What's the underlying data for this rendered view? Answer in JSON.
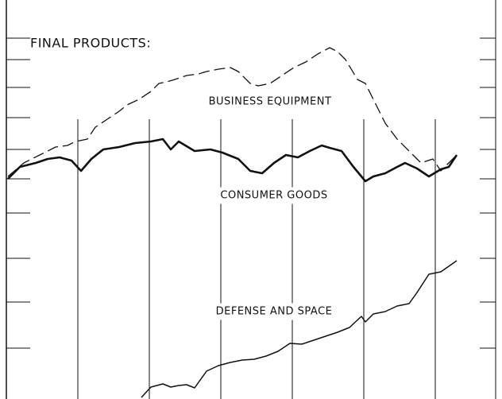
{
  "chart_data": {
    "type": "line",
    "title": "FINAL PRODUCTS:",
    "xlim": [
      0,
      632
    ],
    "ylim": [
      0,
      502
    ],
    "xticks": [
      98,
      188,
      278,
      368,
      458,
      548
    ],
    "yticks": [
      454,
      427,
      392,
      354,
      314,
      277,
      234,
      177,
      122,
      64
    ],
    "series": [
      {
        "name": "BUSINESS EQUIPMENT",
        "color": "#111111",
        "style": "dashed",
        "x": [
          10,
          30,
          50,
          70,
          85,
          95,
          110,
          120,
          135,
          150,
          160,
          175,
          190,
          200,
          210,
          220,
          235,
          250,
          260,
          275,
          290,
          300,
          315,
          325,
          340,
          355,
          370,
          385,
          400,
          415,
          425,
          435,
          450,
          460,
          470,
          485,
          500,
          515,
          530,
          545,
          555,
          565,
          575
        ],
        "values": [
          280,
          297,
          307,
          317,
          319,
          324,
          327,
          342,
          352,
          362,
          370,
          377,
          387,
          397,
          399,
          402,
          407,
          409,
          412,
          415,
          417,
          412,
          397,
          394,
          397,
          407,
          417,
          424,
          434,
          442,
          437,
          427,
          402,
          397,
          377,
          347,
          327,
          312,
          297,
          302,
          287,
          297,
          307
        ]
      },
      {
        "name": "CONSUMER GOODS",
        "color": "#111111",
        "style": "thick",
        "x": [
          10,
          25,
          45,
          60,
          75,
          90,
          102,
          115,
          130,
          150,
          170,
          190,
          205,
          215,
          225,
          245,
          265,
          280,
          300,
          315,
          330,
          345,
          360,
          375,
          390,
          405,
          415,
          430,
          445,
          460,
          470,
          485,
          500,
          510,
          525,
          540,
          555,
          565,
          575
        ],
        "values": [
          277,
          292,
          297,
          302,
          304,
          300,
          287,
          302,
          314,
          317,
          322,
          324,
          327,
          314,
          324,
          312,
          314,
          310,
          302,
          287,
          284,
          297,
          307,
          304,
          312,
          319,
          316,
          312,
          292,
          274,
          280,
          284,
          292,
          297,
          290,
          280,
          289,
          292,
          307
        ]
      },
      {
        "name": "DEFENSE AND SPACE",
        "color": "#111111",
        "style": "thin",
        "x": [
          178,
          190,
          205,
          215,
          225,
          235,
          245,
          260,
          275,
          290,
          305,
          320,
          335,
          350,
          365,
          380,
          395,
          410,
          425,
          440,
          455,
          460,
          470,
          485,
          500,
          515,
          525,
          540,
          555,
          565,
          575
        ],
        "values": [
          2,
          15,
          19,
          15,
          17,
          18,
          14,
          35,
          42,
          46,
          49,
          50,
          54,
          60,
          70,
          69,
          74,
          79,
          84,
          90,
          104,
          97,
          107,
          110,
          117,
          120,
          134,
          157,
          160,
          167,
          174
        ]
      }
    ]
  }
}
